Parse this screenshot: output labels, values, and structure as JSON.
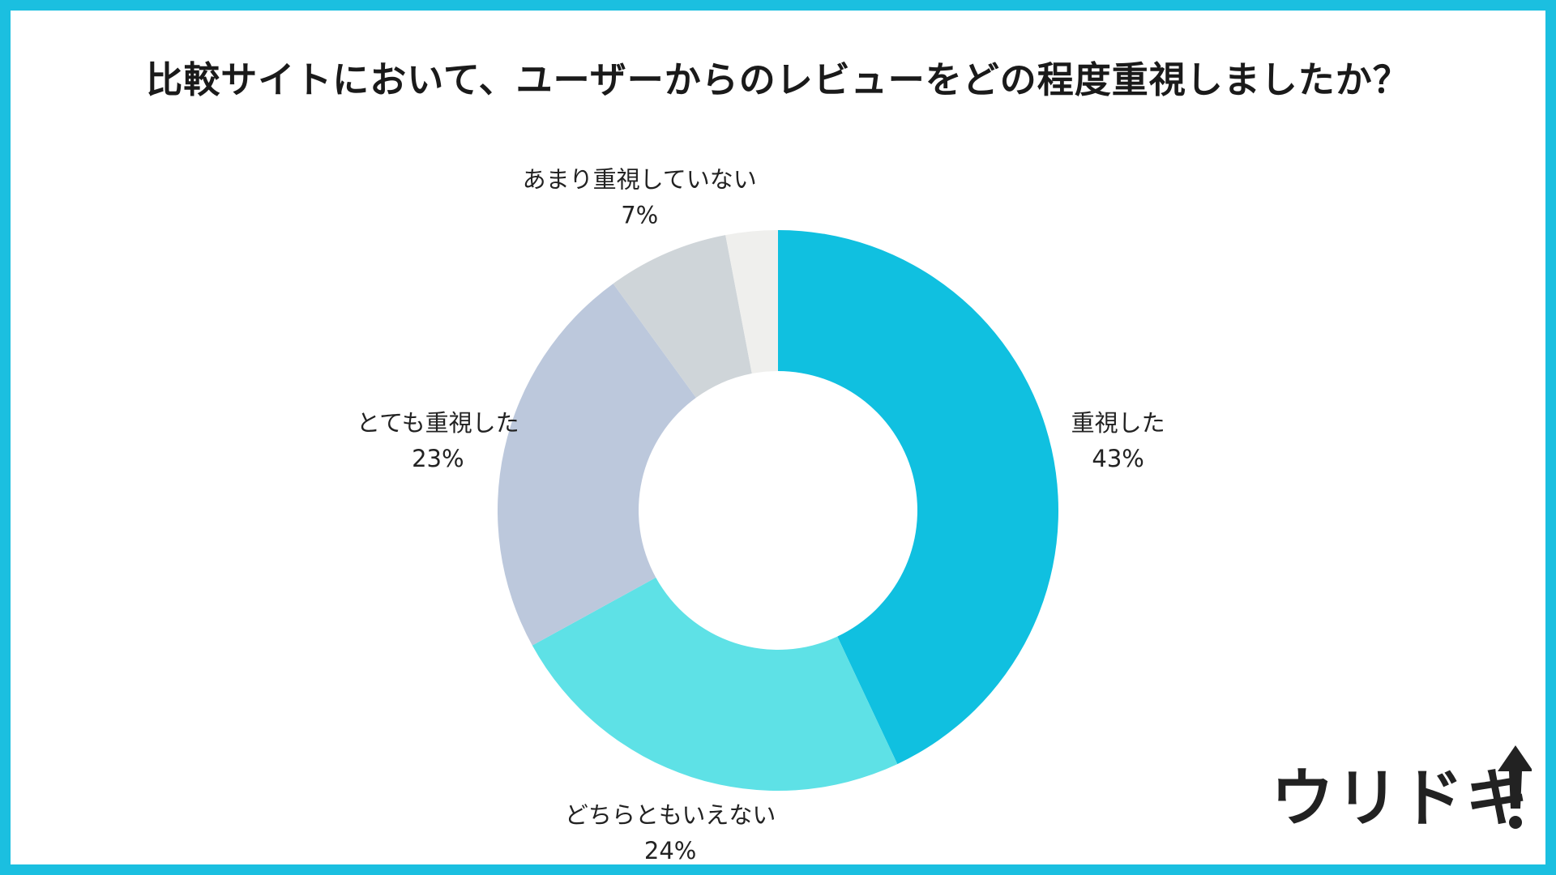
{
  "title": "比較サイトにおいて、ユーザーからのレビューをどの程度重視しましたか？",
  "logo_text": "ウリドキ",
  "chart_data": {
    "type": "pie",
    "style": "donut",
    "title": "比較サイトにおいて、ユーザーからのレビューをどの程度重視しましたか？",
    "slices": [
      {
        "label": "重視した",
        "value": 43,
        "value_label": "43%",
        "color": "#10c0e0"
      },
      {
        "label": "どちらともいえない",
        "value": 24,
        "value_label": "24%",
        "color": "#5ee1e6"
      },
      {
        "label": "とても重視した",
        "value": 23,
        "value_label": "23%",
        "color": "#bcc8dc"
      },
      {
        "label": "あまり重視していない",
        "value": 7,
        "value_label": "7%",
        "color": "#cfd5d9"
      },
      {
        "label": "",
        "value": 3,
        "value_label": "",
        "color": "#efefed"
      }
    ],
    "start": "12 o'clock",
    "direction": "clockwise",
    "legend": "none"
  },
  "colors": {
    "frame": "#1bbfe0",
    "text": "#1a1a1a"
  }
}
